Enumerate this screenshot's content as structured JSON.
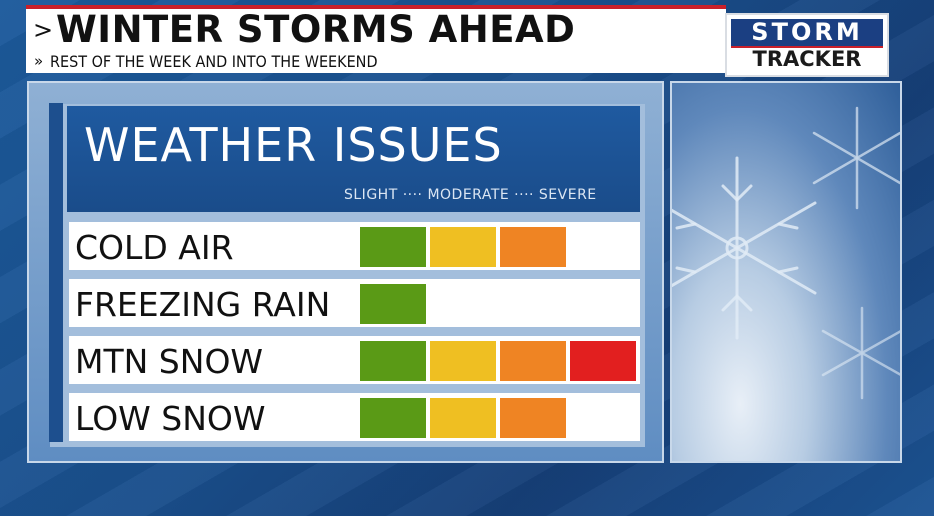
{
  "header": {
    "title": "WINTER STORMS AHEAD",
    "subtitle": "REST OF THE WEEK AND INTO THE WEEKEND",
    "title_chevron": ">",
    "subtitle_chevron": "»"
  },
  "logo": {
    "top": "STORM",
    "bottom": "TRACKER"
  },
  "panel": {
    "heading": "WEATHER ISSUES",
    "scale_label": "SLIGHT ···· MODERATE ···· SEVERE"
  },
  "levels": {
    "slight": "#5a9a16",
    "moderate": "#efbf22",
    "high": "#ef8423",
    "severe": "#e21f1f"
  },
  "rows": [
    {
      "label": "COLD AIR",
      "level": 3
    },
    {
      "label": "FREEZING RAIN",
      "level": 1
    },
    {
      "label": "MTN SNOW",
      "level": 4
    },
    {
      "label": "LOW SNOW",
      "level": 3
    }
  ],
  "side_image": {
    "icon": "snowflake-icon"
  }
}
